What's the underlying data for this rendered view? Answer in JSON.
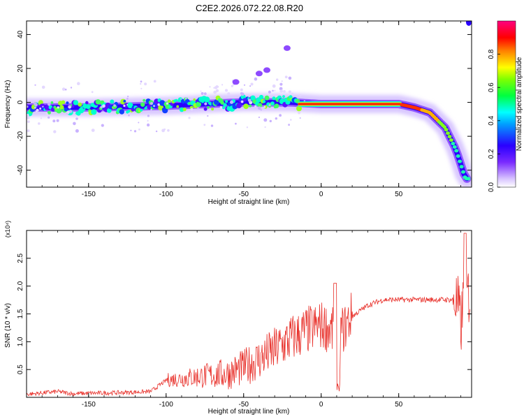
{
  "figure_title": "C2E2.2026.072.22.08.R20",
  "colors": {
    "panel_border": "#000000",
    "snr_line": "#e8302a",
    "background": "#ffffff"
  },
  "chart_data": [
    {
      "type": "heatmap",
      "title": "C2E2.2026.072.22.08.R20",
      "xlabel": "Height of straight line (km)",
      "ylabel": "Frequency (Hz)",
      "xlim": [
        -190,
        97
      ],
      "ylim": [
        -50,
        48
      ],
      "xticks": [
        -150,
        -100,
        -50,
        0,
        50
      ],
      "yticks": [
        -40,
        -20,
        0,
        20,
        40
      ],
      "grid": false,
      "colorbar": {
        "label": "Normalized spectral amplitude",
        "range": [
          0,
          1
        ],
        "ticks": [
          0.0,
          0.2,
          0.4,
          0.6,
          0.8
        ],
        "colormap": [
          "#ffffff",
          "#a070ff",
          "#2a00ff",
          "#00ffff",
          "#00ff40",
          "#ffff00",
          "#ff8000",
          "#ff0000",
          "#ff0080"
        ]
      },
      "ridge": [
        {
          "x": -190,
          "y": -3
        },
        {
          "x": -150,
          "y": -3
        },
        {
          "x": -100,
          "y": -2
        },
        {
          "x": -50,
          "y": 0
        },
        {
          "x": -20,
          "y": 0
        },
        {
          "x": 0,
          "y": -1
        },
        {
          "x": 50,
          "y": -1
        },
        {
          "x": 60,
          "y": -3
        },
        {
          "x": 70,
          "y": -6
        },
        {
          "x": 80,
          "y": -15
        },
        {
          "x": 87,
          "y": -28
        },
        {
          "x": 93,
          "y": -45
        }
      ],
      "faint_branch": [
        {
          "x": -55,
          "y": 12
        },
        {
          "x": -40,
          "y": 17
        },
        {
          "x": -35,
          "y": 19
        },
        {
          "x": -22,
          "y": 32
        }
      ]
    },
    {
      "type": "line",
      "xlabel": "Height of straight line (km)",
      "ylabel": "SNR (10 * v/v)",
      "y_multiplier": "(x10⁴)",
      "xlim": [
        -190,
        97
      ],
      "ylim": [
        0,
        3.0
      ],
      "xticks": [
        -150,
        -100,
        -50,
        0,
        50
      ],
      "yticks": [
        0.5,
        1.0,
        1.5,
        2.0,
        2.5
      ],
      "grid": false,
      "series": [
        {
          "x": [
            -190,
            -170,
            -160,
            -150,
            -130,
            -110,
            -100,
            -80,
            -60,
            -50,
            -40,
            -30,
            -20,
            -10,
            0,
            5,
            10,
            15,
            20,
            30,
            40,
            50,
            60,
            70,
            80,
            85,
            88,
            90,
            92,
            95
          ],
          "y": [
            0.05,
            0.1,
            0.06,
            0.07,
            0.08,
            0.1,
            0.3,
            0.35,
            0.4,
            0.5,
            0.65,
            0.8,
            1.0,
            1.15,
            1.25,
            1.2,
            1.05,
            1.2,
            1.45,
            1.65,
            1.75,
            1.75,
            1.75,
            1.75,
            1.75,
            1.75,
            1.6,
            1.2,
            1.7,
            1.8
          ]
        }
      ]
    }
  ]
}
